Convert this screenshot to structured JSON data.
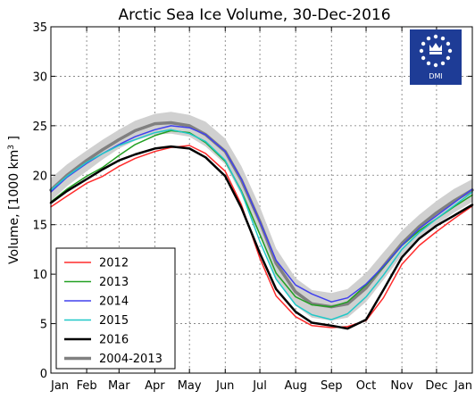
{
  "chart_data": {
    "type": "line",
    "title": "Arctic Sea Ice Volume, 30-Dec-2016",
    "ylabel": "Volume, [1000 km³]",
    "ylabel_parts": {
      "prefix": "Volume, [1000 km",
      "sup": "3",
      "suffix": " ]"
    },
    "xlabel": "",
    "ylim": [
      0,
      35
    ],
    "yticks": [
      "0",
      "5",
      "10",
      "15",
      "20",
      "25",
      "30",
      "35"
    ],
    "xlim": [
      1,
      366
    ],
    "xticks": [
      {
        "day": 1,
        "label": "Jan"
      },
      {
        "day": 32,
        "label": "Feb"
      },
      {
        "day": 60,
        "label": "Mar"
      },
      {
        "day": 91,
        "label": "Apr"
      },
      {
        "day": 121,
        "label": "May"
      },
      {
        "day": 152,
        "label": "Jun"
      },
      {
        "day": 182,
        "label": "Jul"
      },
      {
        "day": 213,
        "label": "Aug"
      },
      {
        "day": 244,
        "label": "Sep"
      },
      {
        "day": 274,
        "label": "Oct"
      },
      {
        "day": 305,
        "label": "Nov"
      },
      {
        "day": 335,
        "label": "Dec"
      },
      {
        "day": 366,
        "label": "Jan"
      }
    ],
    "grid": true,
    "legend_position": "bottom-left",
    "logo_text": "DMI",
    "band": {
      "name": "2004-2013 ±1 std",
      "color": "#d0d0d0",
      "x": [
        1,
        15,
        32,
        46,
        60,
        74,
        91,
        105,
        121,
        135,
        152,
        166,
        182,
        196,
        213,
        227,
        244,
        258,
        274,
        289,
        305,
        320,
        335,
        350,
        366
      ],
      "lower": [
        17.4,
        18.9,
        20.4,
        21.6,
        22.7,
        23.5,
        24.1,
        24.2,
        23.9,
        22.9,
        21.1,
        18.0,
        13.8,
        9.6,
        6.8,
        5.6,
        5.3,
        5.6,
        7.2,
        9.4,
        11.9,
        13.6,
        15.0,
        16.2,
        17.3
      ],
      "upper": [
        19.7,
        21.1,
        22.5,
        23.6,
        24.6,
        25.5,
        26.2,
        26.4,
        26.1,
        25.4,
        23.7,
        20.9,
        16.8,
        12.6,
        9.6,
        8.4,
        8.1,
        8.5,
        10.1,
        12.2,
        14.4,
        16.0,
        17.4,
        18.6,
        19.6
      ]
    },
    "series": [
      {
        "name": "2012",
        "color": "#ff2b2b",
        "width": 1.5,
        "x": [
          1,
          15,
          32,
          46,
          60,
          74,
          91,
          105,
          121,
          135,
          152,
          166,
          182,
          196,
          213,
          227,
          244,
          258,
          274,
          289,
          305,
          320,
          335,
          350,
          366
        ],
        "values": [
          16.8,
          17.9,
          19.2,
          19.9,
          20.9,
          21.7,
          22.4,
          22.8,
          23.0,
          22.2,
          20.4,
          17.0,
          11.6,
          7.8,
          5.7,
          4.8,
          4.6,
          4.7,
          5.3,
          7.6,
          11.0,
          12.9,
          14.3,
          15.6,
          16.9
        ]
      },
      {
        "name": "2013",
        "color": "#22a022",
        "width": 1.5,
        "x": [
          1,
          15,
          32,
          46,
          60,
          74,
          91,
          105,
          121,
          135,
          152,
          166,
          182,
          196,
          213,
          227,
          244,
          258,
          274,
          289,
          305,
          320,
          335,
          350,
          366
        ],
        "values": [
          17.3,
          18.6,
          19.9,
          20.8,
          22.0,
          23.1,
          24.0,
          24.5,
          24.3,
          23.3,
          21.4,
          18.4,
          14.0,
          10.1,
          7.7,
          6.9,
          6.7,
          7.2,
          8.9,
          10.7,
          12.9,
          14.4,
          15.6,
          16.8,
          18.0
        ]
      },
      {
        "name": "2014",
        "color": "#4040ee",
        "width": 1.5,
        "x": [
          1,
          15,
          32,
          46,
          60,
          74,
          91,
          105,
          121,
          135,
          152,
          166,
          182,
          196,
          213,
          227,
          244,
          258,
          274,
          289,
          305,
          320,
          335,
          350,
          366
        ],
        "values": [
          18.3,
          19.8,
          21.2,
          22.2,
          23.1,
          23.9,
          24.6,
          25.0,
          24.8,
          24.1,
          22.4,
          19.6,
          15.3,
          11.4,
          8.9,
          8.0,
          7.2,
          7.6,
          9.0,
          10.8,
          12.9,
          14.6,
          15.9,
          17.2,
          18.6
        ]
      },
      {
        "name": "2015",
        "color": "#20c8c8",
        "width": 1.5,
        "x": [
          1,
          15,
          32,
          46,
          60,
          74,
          91,
          105,
          121,
          135,
          152,
          166,
          182,
          196,
          213,
          227,
          244,
          258,
          274,
          289,
          305,
          320,
          335,
          350,
          366
        ],
        "values": [
          18.5,
          19.9,
          21.3,
          22.2,
          23.0,
          23.6,
          24.3,
          24.6,
          24.2,
          23.4,
          21.5,
          18.3,
          13.3,
          9.5,
          6.9,
          5.9,
          5.4,
          6.0,
          7.7,
          9.9,
          12.5,
          14.2,
          15.6,
          16.9,
          18.3
        ]
      },
      {
        "name": "2016",
        "color": "#000000",
        "width": 2.5,
        "x": [
          1,
          15,
          32,
          46,
          60,
          74,
          91,
          105,
          121,
          135,
          152,
          166,
          182,
          196,
          213,
          227,
          244,
          258,
          274,
          289,
          305,
          320,
          335,
          350,
          366
        ],
        "values": [
          17.2,
          18.4,
          19.6,
          20.6,
          21.5,
          22.1,
          22.7,
          22.9,
          22.7,
          21.8,
          19.9,
          16.7,
          12.1,
          8.5,
          6.2,
          5.1,
          4.8,
          4.5,
          5.4,
          8.4,
          11.7,
          13.6,
          14.9,
          15.9,
          17.0
        ]
      },
      {
        "name": "2004-2013",
        "color": "#808080",
        "width": 3.5,
        "x": [
          1,
          15,
          32,
          46,
          60,
          74,
          91,
          105,
          121,
          135,
          152,
          166,
          182,
          196,
          213,
          227,
          244,
          258,
          274,
          289,
          305,
          320,
          335,
          350,
          366
        ],
        "values": [
          18.5,
          20.0,
          21.5,
          22.6,
          23.6,
          24.5,
          25.2,
          25.3,
          25.0,
          24.1,
          22.4,
          19.5,
          15.3,
          11.1,
          8.2,
          7.0,
          6.7,
          7.0,
          8.6,
          10.8,
          13.1,
          14.8,
          16.2,
          17.4,
          18.5
        ]
      }
    ]
  }
}
